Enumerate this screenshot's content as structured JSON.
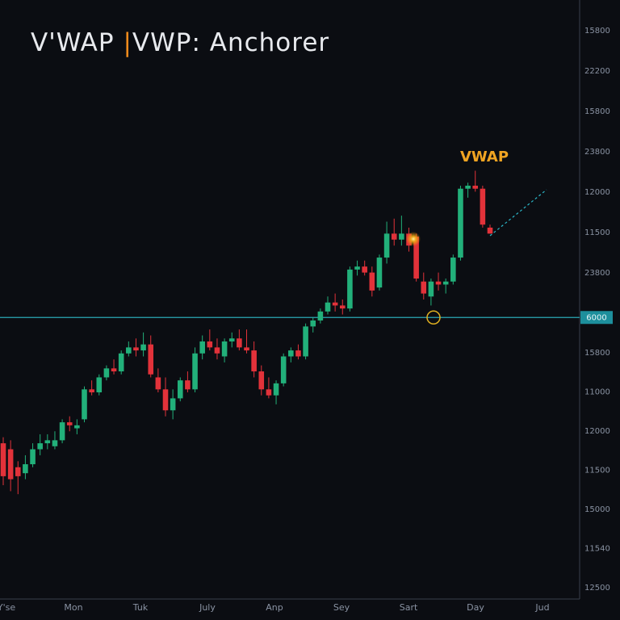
{
  "chart_data": {
    "type": "candlestick",
    "title_parts": [
      "V'WAP ",
      "|",
      "VWP: Anchorer"
    ],
    "annotation": "VWAP",
    "anchor_label": "6000",
    "anchor_level": 47,
    "ylim": [
      0,
      100
    ],
    "up_color": "#22b07a",
    "down_color": "#e2323a",
    "y_axis_labels": [
      "15800",
      "22200",
      "15800",
      "23800",
      "12000",
      "11500",
      "23800",
      "15800",
      "11000",
      "12000",
      "11500",
      "15000",
      "11540",
      "12500"
    ],
    "x_axis_labels": [
      "Y'se",
      "Mon",
      "Tuk",
      "July",
      "Anp",
      "Sey",
      "Sart",
      "Day",
      "Jud"
    ],
    "ohlc": [
      [
        26,
        27,
        19,
        20.5
      ],
      [
        25,
        26.5,
        18,
        20
      ],
      [
        22,
        23,
        17.5,
        20.5
      ],
      [
        21,
        24,
        20,
        22.5
      ],
      [
        22.5,
        26,
        22,
        25
      ],
      [
        25,
        27.5,
        24,
        26
      ],
      [
        26,
        27.5,
        25,
        26.5
      ],
      [
        25.5,
        28,
        25,
        26.5
      ],
      [
        26.5,
        30,
        26,
        29.5
      ],
      [
        29.5,
        30.5,
        28,
        29
      ],
      [
        28.5,
        30,
        27.5,
        29
      ],
      [
        30,
        35.5,
        29.5,
        35
      ],
      [
        35,
        36.5,
        34,
        34.5
      ],
      [
        34.5,
        37.5,
        34,
        37
      ],
      [
        37,
        39,
        36.5,
        38.5
      ],
      [
        38.5,
        40,
        37.5,
        38
      ],
      [
        38,
        41.5,
        37.5,
        41
      ],
      [
        41,
        43,
        40.5,
        42
      ],
      [
        42,
        43.5,
        40.5,
        41.5
      ],
      [
        41.5,
        44.5,
        40.5,
        42.5
      ],
      [
        42.5,
        44,
        37,
        37.5
      ],
      [
        37,
        38.5,
        34.5,
        35
      ],
      [
        35,
        37,
        30.5,
        31.5
      ],
      [
        31.5,
        35,
        30,
        33.5
      ],
      [
        33.5,
        37,
        33,
        36.5
      ],
      [
        36.5,
        38,
        34.5,
        35
      ],
      [
        35,
        42,
        34.5,
        41
      ],
      [
        41,
        44,
        40,
        43
      ],
      [
        43,
        45,
        41.5,
        42
      ],
      [
        42,
        43.5,
        40,
        41
      ],
      [
        40.5,
        43.5,
        39.5,
        43
      ],
      [
        43,
        44.5,
        42,
        43.5
      ],
      [
        43.5,
        45,
        41.5,
        42
      ],
      [
        42,
        45,
        41,
        41.5
      ],
      [
        41.5,
        43,
        37,
        38
      ],
      [
        38,
        39,
        34,
        35
      ],
      [
        35,
        37,
        33.5,
        34
      ],
      [
        34,
        36.5,
        32.5,
        36
      ],
      [
        36,
        41,
        35.5,
        40.5
      ],
      [
        40.5,
        42,
        39.5,
        41.5
      ],
      [
        41.5,
        42.5,
        40,
        40.5
      ],
      [
        40.5,
        46,
        40,
        45.5
      ],
      [
        45.5,
        47,
        44.5,
        46.5
      ],
      [
        46.5,
        48.5,
        46,
        48
      ],
      [
        48,
        50.5,
        47.5,
        49.5
      ],
      [
        49.5,
        51,
        48,
        49
      ],
      [
        49,
        50,
        47.5,
        48.5
      ],
      [
        48.5,
        55.5,
        48,
        55
      ],
      [
        55,
        56.5,
        54,
        55.5
      ],
      [
        55.5,
        56.5,
        54,
        54.5
      ],
      [
        54.5,
        55.5,
        50.5,
        51.5
      ],
      [
        52,
        57.5,
        51.5,
        57
      ],
      [
        57,
        63,
        56,
        61
      ],
      [
        61,
        63.5,
        59,
        60
      ],
      [
        60,
        64,
        59,
        61
      ],
      [
        61,
        62,
        58,
        59
      ],
      [
        60.5,
        61,
        53,
        53.5
      ],
      [
        53,
        54.5,
        50,
        51
      ],
      [
        50.5,
        53.5,
        49,
        53
      ],
      [
        53,
        54.5,
        51.5,
        52.5
      ],
      [
        52.5,
        53.5,
        51,
        53
      ],
      [
        53,
        57.5,
        52.5,
        57
      ],
      [
        57,
        69,
        56.5,
        68.5
      ],
      [
        68.5,
        69.5,
        67,
        69
      ],
      [
        69,
        71.5,
        68,
        68.5
      ],
      [
        68.5,
        69,
        62,
        62.5
      ],
      [
        62,
        62.5,
        61,
        61
      ]
    ]
  }
}
